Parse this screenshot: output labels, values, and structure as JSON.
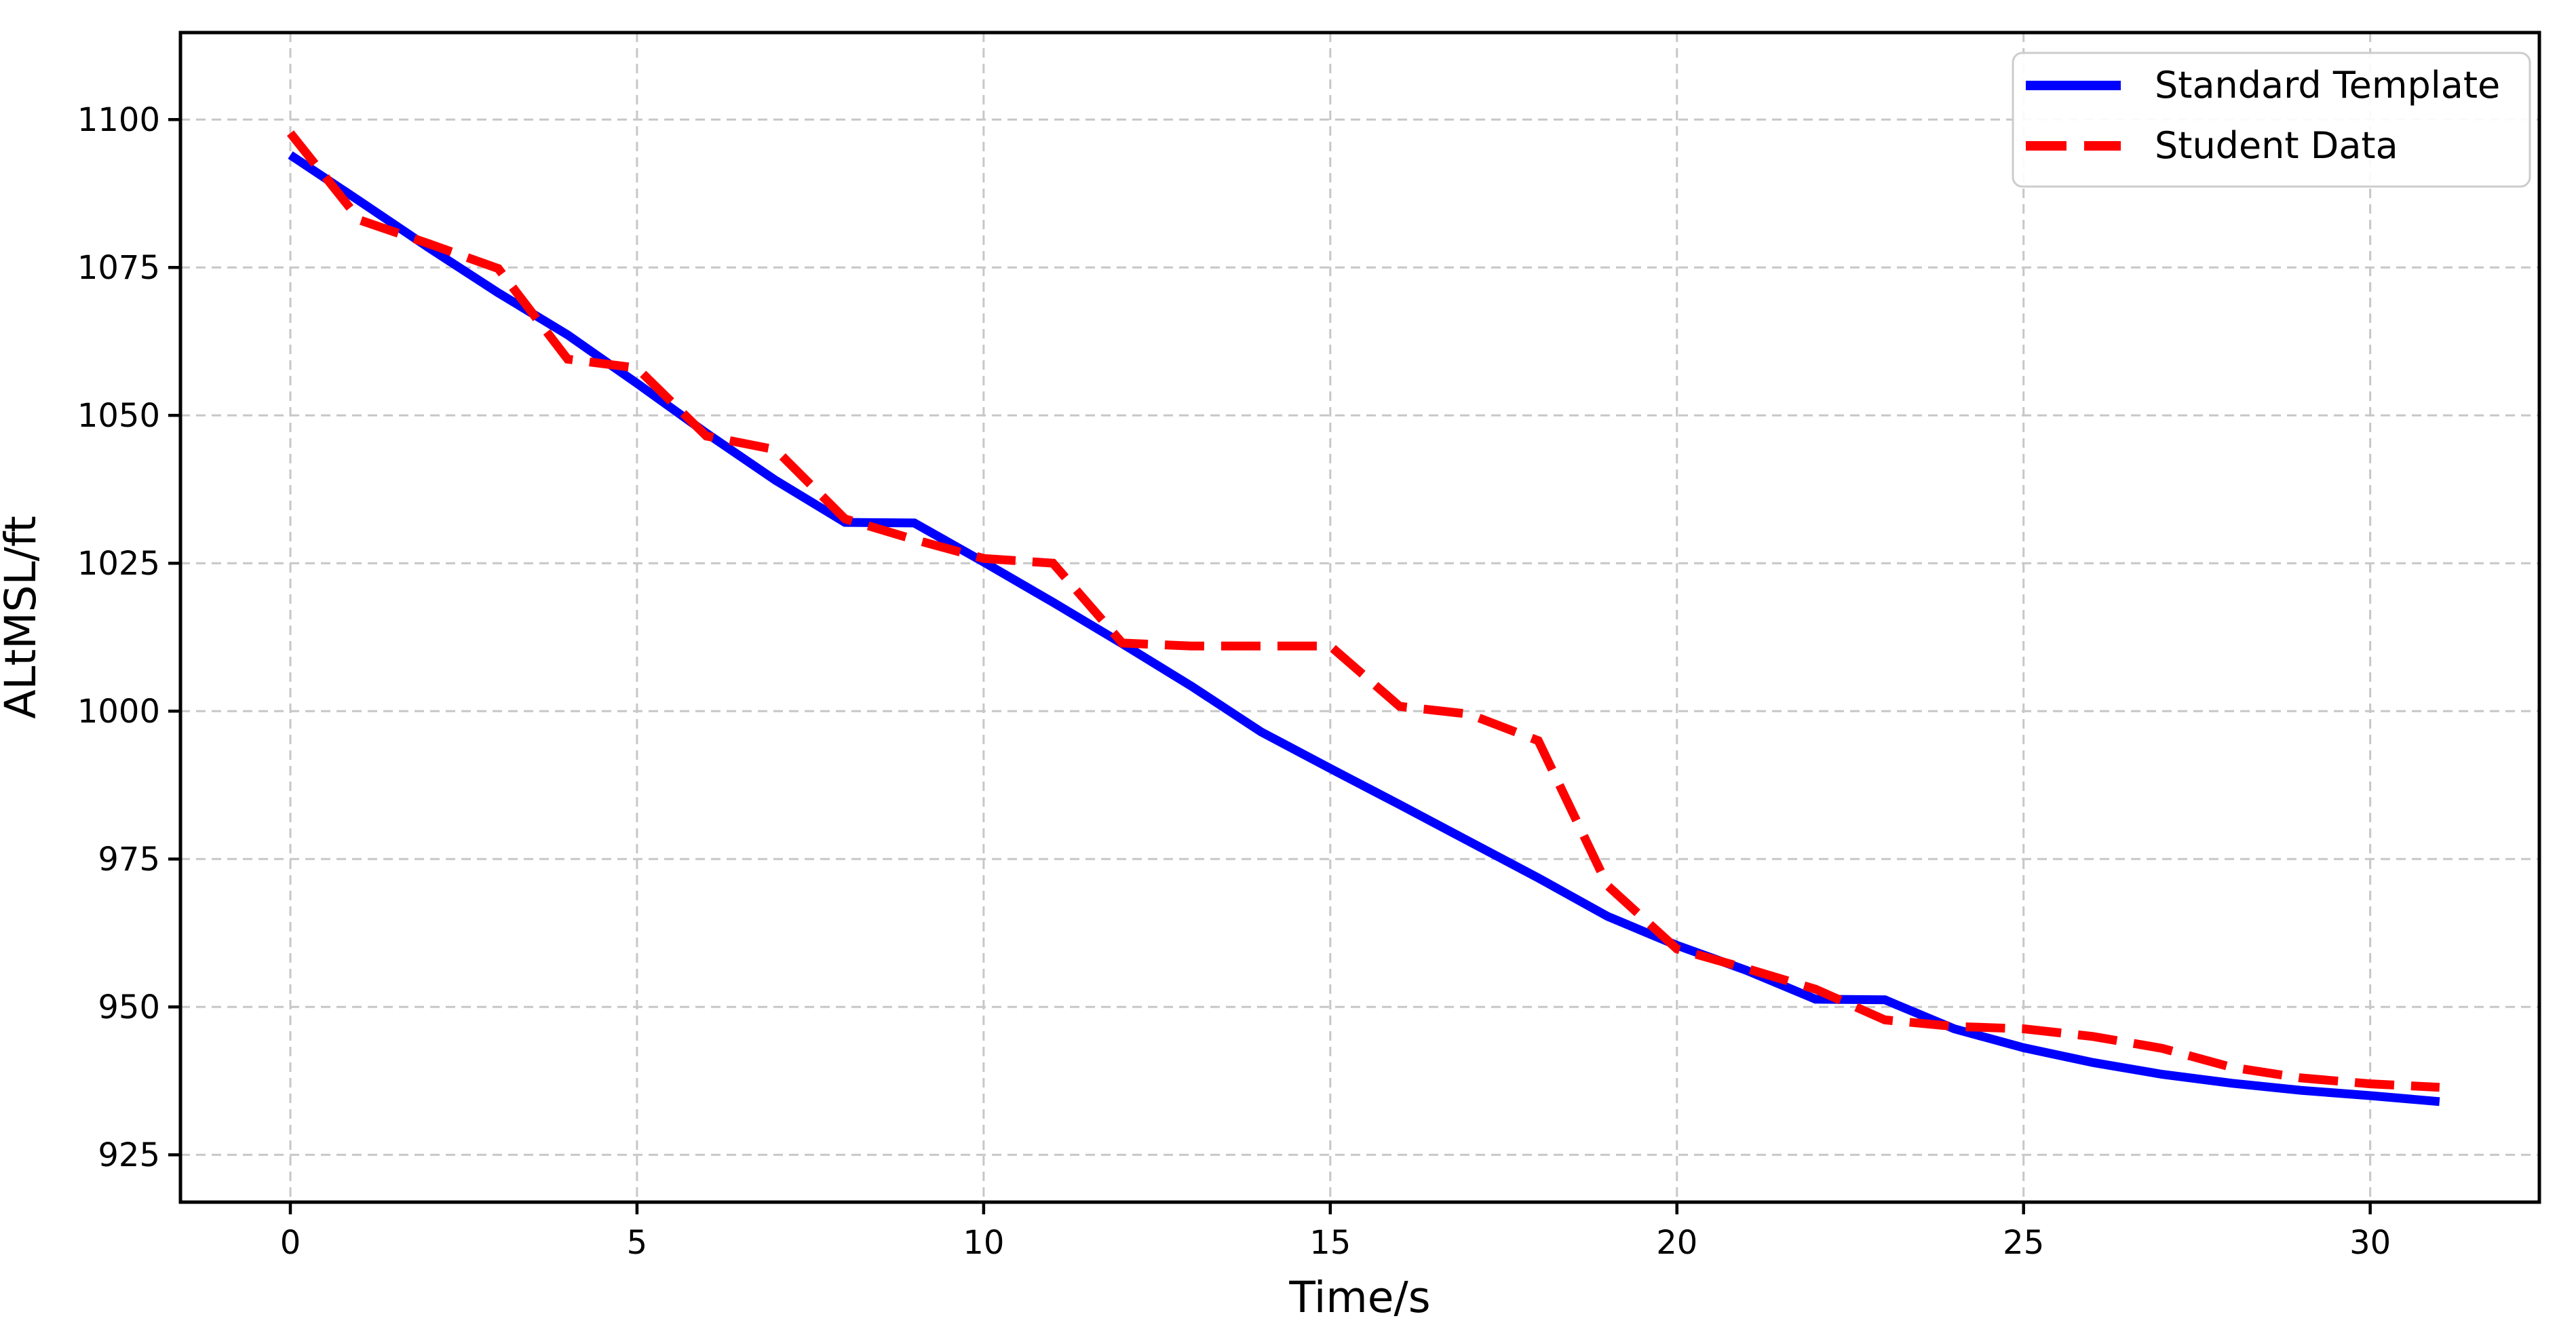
{
  "chart_data": {
    "type": "line",
    "title": "",
    "xlabel": "Time/s",
    "ylabel": "ALtMSL/ft",
    "x": [
      0,
      1,
      2,
      3,
      4,
      5,
      6,
      7,
      8,
      9,
      10,
      11,
      12,
      13,
      14,
      15,
      16,
      17,
      18,
      19,
      20,
      21,
      22,
      23,
      24,
      25,
      26,
      27,
      28,
      29,
      30,
      31
    ],
    "series": [
      {
        "name": "Standard Template",
        "color": "#0000ff",
        "style": "solid",
        "values": [
          1094.0,
          1086.2,
          1078.3,
          1070.7,
          1063.6,
          1055.4,
          1047.0,
          1039.0,
          1031.9,
          1031.8,
          1025.2,
          1018.4,
          1011.4,
          1004.2,
          996.5,
          990.3,
          984.2,
          978.0,
          971.8,
          965.3,
          960.4,
          956.2,
          951.3,
          951.2,
          946.3,
          943.1,
          940.6,
          938.6,
          937.1,
          935.9,
          935.0,
          934.0
        ]
      },
      {
        "name": "Student Data",
        "color": "#ff0000",
        "style": "dashed",
        "values": [
          1097.7,
          1083.0,
          1079.0,
          1074.8,
          1059.5,
          1058.0,
          1046.5,
          1044.2,
          1032.5,
          1029.0,
          1025.8,
          1025.0,
          1011.5,
          1011.0,
          1011.0,
          1011.0,
          1000.8,
          999.5,
          995.0,
          970.5,
          959.8,
          956.5,
          953.0,
          947.8,
          946.7,
          946.3,
          945.0,
          943.0,
          939.8,
          938.0,
          937.0,
          936.4
        ]
      }
    ],
    "xticks": [
      0,
      5,
      10,
      15,
      20,
      25,
      30
    ],
    "yticks": [
      925,
      950,
      975,
      1000,
      1025,
      1050,
      1075,
      1100
    ],
    "xlim": [
      -1.585,
      32.44
    ],
    "ylim": [
      917.0,
      1114.7
    ],
    "grid": true,
    "grid_color": "#c7c7c7",
    "axis_color": "#000000",
    "background_color": "#ffffff",
    "legend_position": "upper right",
    "legend_border_color": "#cccccc"
  }
}
